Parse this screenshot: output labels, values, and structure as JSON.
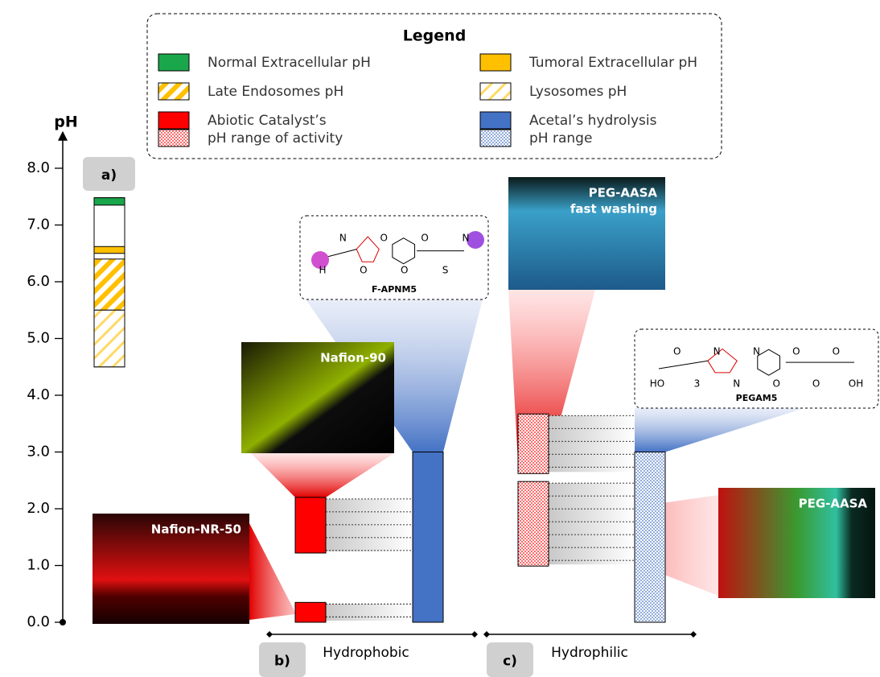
{
  "axis": {
    "label": "pH",
    "ylim": [
      0,
      8.6
    ],
    "yticks": [
      {
        "value": 0,
        "label": "0.0"
      },
      {
        "value": 1,
        "label": "1.0"
      },
      {
        "value": 2,
        "label": "2.0"
      },
      {
        "value": 3,
        "label": "3.0"
      },
      {
        "value": 4,
        "label": "4.0"
      },
      {
        "value": 5,
        "label": "5.0"
      },
      {
        "value": 6,
        "label": "6.0"
      },
      {
        "value": 7,
        "label": "7.0"
      },
      {
        "value": 8,
        "label": "8.0"
      }
    ]
  },
  "legend": {
    "title": "Legend",
    "items": [
      {
        "lines": [
          "Normal Extracellular pH"
        ],
        "color": "#1aa64b",
        "fills": [
          "solid"
        ]
      },
      {
        "lines": [
          "Tumoral Extracellular pH"
        ],
        "color": "#ffc000",
        "fills": [
          "solid"
        ]
      },
      {
        "lines": [
          "Late Endosomes pH"
        ],
        "color": "#ffc000",
        "fills": [
          "hatch"
        ]
      },
      {
        "lines": [
          "Lysosomes pH"
        ],
        "color": "#ffd966",
        "fills": [
          "hatch-light"
        ]
      },
      {
        "lines": [
          "Abiotic Catalyst’s",
          "pH range of activity"
        ],
        "color": "#ff0000",
        "fills": [
          "solid",
          "dots"
        ]
      },
      {
        "lines": [
          "Acetal’s hydrolysis",
          "pH range"
        ],
        "color": "#4472c4",
        "fills": [
          "solid",
          "dots"
        ]
      }
    ]
  },
  "panel_a": {
    "label": "a)",
    "ranges": [
      {
        "low": 7.35,
        "high": 7.48,
        "color": "#1aa64b",
        "fill": "solid"
      },
      {
        "low": 6.5,
        "high": 6.62,
        "color": "#ffc000",
        "fill": "solid"
      },
      {
        "low": 5.5,
        "high": 6.4,
        "color": "#ffc000",
        "fill": "hatch"
      },
      {
        "low": 4.5,
        "high": 5.5,
        "color": "#ffd966",
        "fill": "hatch-light"
      }
    ]
  },
  "panel_b": {
    "label": "b)",
    "group": "Hydrophobic",
    "catalysts": [
      {
        "image": [
          "Nafion-90"
        ],
        "low": 1.22,
        "high": 2.2
      },
      {
        "image": [
          "Nafion-NR-50"
        ],
        "low": 0,
        "high": 0.35
      }
    ],
    "acetal": {
      "name": "F-APNM5",
      "low": 0,
      "high": 3.0,
      "color": "#4472c4",
      "fill": "solid",
      "atoms": [
        "H",
        "N",
        "O",
        "O",
        "O",
        "O",
        "S",
        "N"
      ]
    },
    "catalyst_color": "#ff0000",
    "catalyst_fill": "solid"
  },
  "panel_c": {
    "label": "c)",
    "group": "Hydrophilic",
    "catalysts": [
      {
        "image": [
          "PEG-AASA",
          "fast washing"
        ],
        "low": 2.62,
        "high": 3.67
      },
      {
        "image": [
          "PEG-AASA"
        ],
        "low": 0.99,
        "high": 2.48
      }
    ],
    "acetal": {
      "name": "PEGAM5",
      "low": 0,
      "high": 3.0,
      "color": "#4472c4",
      "fill": "dots",
      "atoms": [
        "HO",
        "O",
        "3",
        "N",
        "N",
        "N",
        "O",
        "O",
        "O",
        "O",
        "OH"
      ]
    },
    "catalyst_color": "#ff0000",
    "catalyst_fill": "dots"
  }
}
